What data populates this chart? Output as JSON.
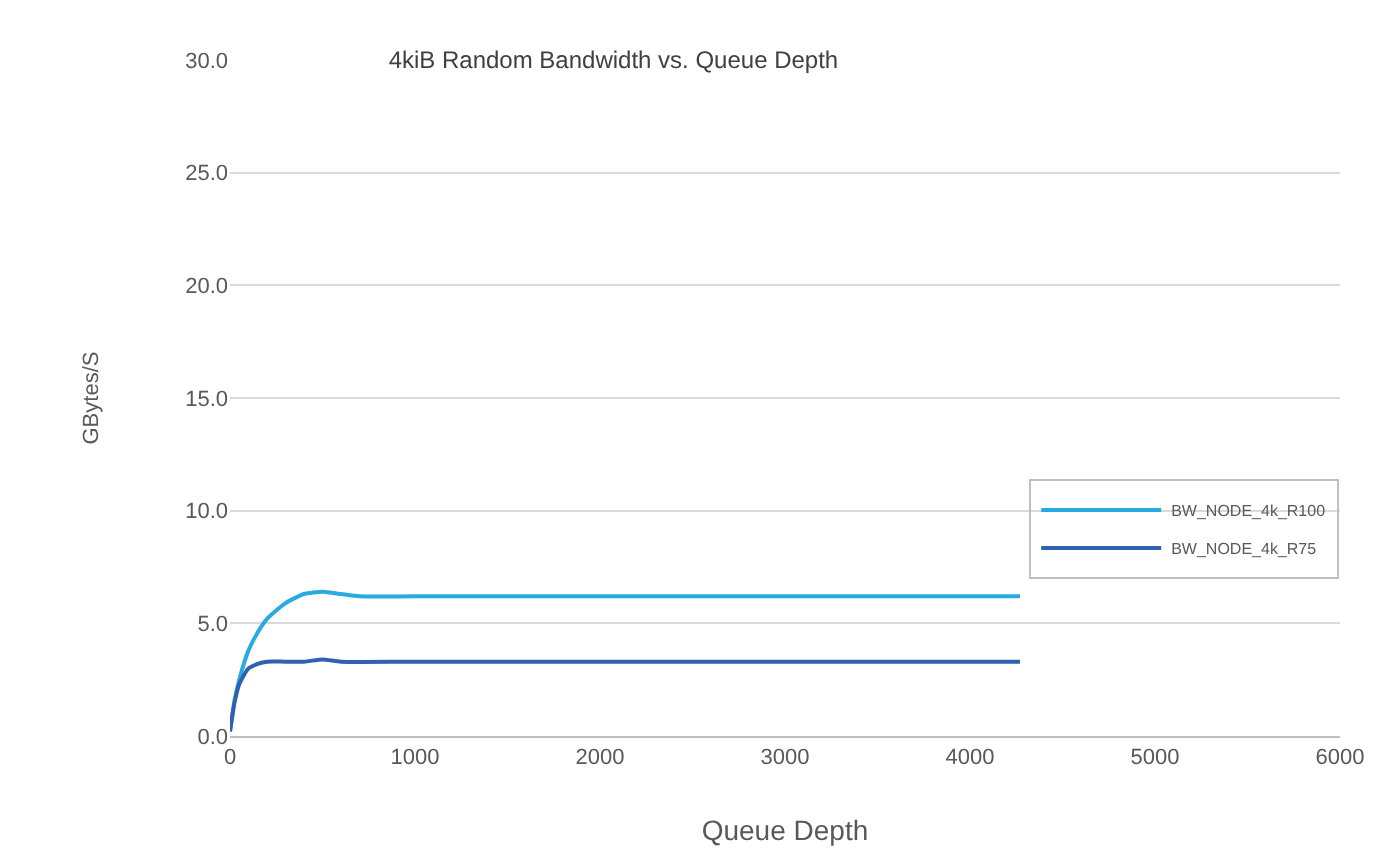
{
  "chart_data": {
    "type": "line",
    "title": "4kiB Random Bandwidth vs. Queue Depth",
    "xlabel": "Queue Depth",
    "ylabel": "GBytes/S",
    "xlim": [
      0,
      6000
    ],
    "xticks": [
      0,
      1000,
      2000,
      3000,
      4000,
      5000,
      6000
    ],
    "ylim": [
      0,
      30
    ],
    "yticks": [
      {
        "value": 0,
        "label": "0.0"
      },
      {
        "value": 5,
        "label": "5.0"
      },
      {
        "value": 10,
        "label": "10.0"
      },
      {
        "value": 15,
        "label": "15.0"
      },
      {
        "value": 20,
        "label": "20.0"
      },
      {
        "value": 25,
        "label": "25.0"
      },
      {
        "value": 30,
        "label": "30.0"
      }
    ],
    "grid": "y",
    "legend": "right",
    "marker": "none",
    "line_style": "solid",
    "series": [
      {
        "name": "BW_NODE_4k_R100",
        "color": "#29abe2",
        "x": [
          0,
          25,
          50,
          100,
          150,
          200,
          300,
          400,
          500,
          600,
          700,
          1000,
          2000,
          3000,
          4000,
          4270
        ],
        "values": [
          0.2,
          1.6,
          2.5,
          3.8,
          4.6,
          5.2,
          5.9,
          6.3,
          6.4,
          6.3,
          6.2,
          6.2,
          6.2,
          6.2,
          6.2,
          6.2
        ]
      },
      {
        "name": "BW_NODE_4k_R75",
        "color": "#3060b0",
        "x": [
          0,
          25,
          50,
          100,
          150,
          200,
          300,
          400,
          500,
          600,
          1000,
          2000,
          3000,
          4000,
          4270
        ],
        "values": [
          0.2,
          1.5,
          2.3,
          3.0,
          3.2,
          3.3,
          3.3,
          3.3,
          3.4,
          3.3,
          3.3,
          3.3,
          3.3,
          3.3,
          3.3
        ]
      }
    ]
  }
}
